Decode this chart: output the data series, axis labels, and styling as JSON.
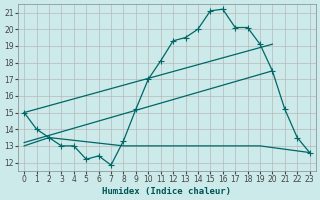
{
  "xlabel": "Humidex (Indice chaleur)",
  "background_color": "#cceaea",
  "grid_color": "#b8b8b8",
  "line_color": "#006666",
  "xlim": [
    -0.5,
    23.5
  ],
  "ylim": [
    11.5,
    21.5
  ],
  "xticks": [
    0,
    1,
    2,
    3,
    4,
    5,
    6,
    7,
    8,
    9,
    10,
    11,
    12,
    13,
    14,
    15,
    16,
    17,
    18,
    19,
    20,
    21,
    22,
    23
  ],
  "yticks": [
    12,
    13,
    14,
    15,
    16,
    17,
    18,
    19,
    20,
    21
  ],
  "line1_x": [
    0,
    1,
    2,
    3,
    4,
    5,
    6,
    7,
    8,
    9,
    10,
    11,
    12,
    13,
    14,
    15,
    16,
    17,
    18,
    19,
    20,
    21,
    22,
    23
  ],
  "line1_y": [
    15.0,
    14.0,
    13.5,
    13.0,
    13.0,
    12.2,
    12.4,
    11.85,
    13.3,
    15.2,
    17.0,
    18.1,
    19.3,
    19.5,
    20.0,
    21.1,
    21.2,
    20.1,
    20.1,
    19.1,
    17.5,
    15.2,
    13.5,
    12.6
  ],
  "line2_x": [
    0,
    20
  ],
  "line2_y": [
    15.0,
    19.1
  ],
  "line3_x": [
    0,
    20
  ],
  "line3_y": [
    13.2,
    17.5
  ],
  "line4_x": [
    0,
    2,
    8,
    19,
    22,
    23
  ],
  "line4_y": [
    13.0,
    13.5,
    13.0,
    13.0,
    12.7,
    12.6
  ]
}
